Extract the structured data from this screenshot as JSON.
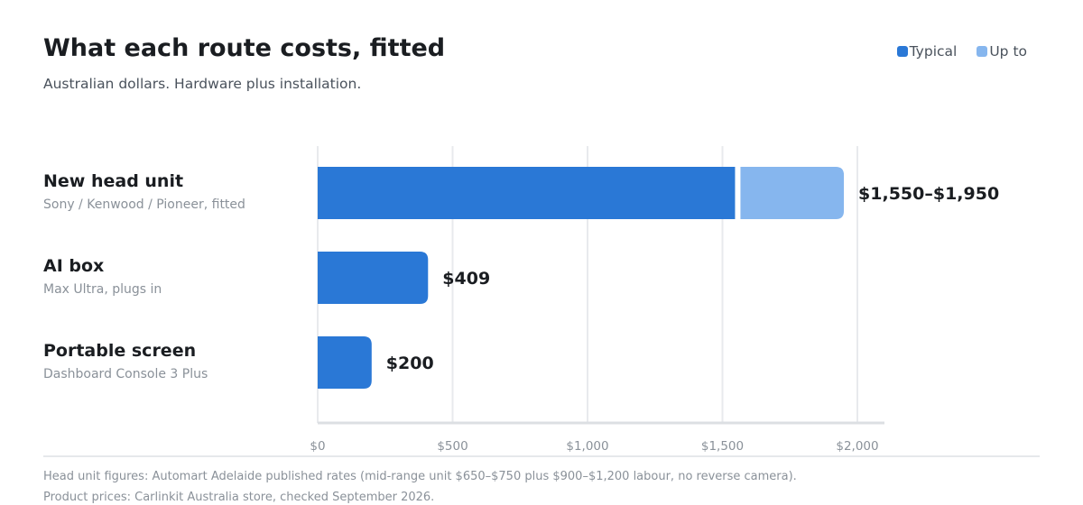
{
  "header": {
    "title": "What each route costs, fitted",
    "subtitle": "Australian dollars. Hardware plus installation."
  },
  "legend": [
    {
      "label": "Typical",
      "color": "#2a78d6"
    },
    {
      "label": "Up to",
      "color": "#86b6ee"
    }
  ],
  "chart_data": {
    "type": "bar",
    "orientation": "horizontal",
    "stacked": true,
    "x_unit": "AUD",
    "xlim": [
      0,
      2100
    ],
    "x_ticks": [
      0,
      500,
      1000,
      1500,
      2000
    ],
    "x_tick_labels": [
      "$0",
      "$500",
      "$1,000",
      "$1,500",
      "$2,000"
    ],
    "grid": true,
    "legend_position": "top-right",
    "categories": [
      {
        "label": "New head unit",
        "sublabel": "Sony / Kenwood / Pioneer, fitted",
        "typical": 1550,
        "up_to": 1950,
        "value_label": "$1,550–$1,950"
      },
      {
        "label": "AI box",
        "sublabel": "Max Ultra, plugs in",
        "typical": 409,
        "up_to": null,
        "value_label": "$409"
      },
      {
        "label": "Portable screen",
        "sublabel": "Dashboard Console 3 Plus",
        "typical": 200,
        "up_to": null,
        "value_label": "$200"
      }
    ],
    "series": [
      {
        "name": "Typical",
        "color": "#2a78d6"
      },
      {
        "name": "Up to",
        "color": "#86b6ee"
      }
    ]
  },
  "footer": {
    "notes": [
      "Head unit figures: Automart Adelaide published rates (mid-range unit $650–$750 plus $900–$1,200 labour, no reverse camera).",
      "Product prices: Carlinkit Australia store, checked September 2026."
    ]
  }
}
